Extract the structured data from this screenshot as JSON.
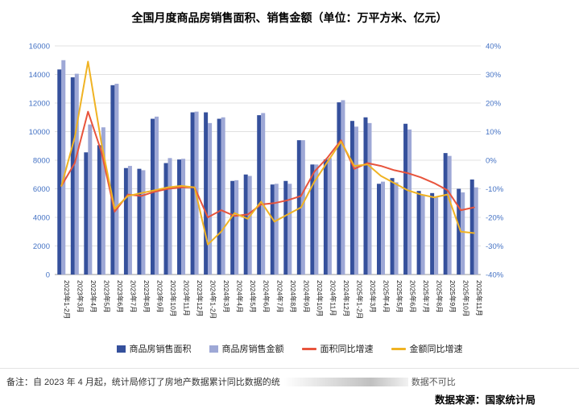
{
  "title": "全国月度商品房销售面积、销售金额（单位：万平方米、亿元）",
  "chart_data": {
    "type": "bar+line",
    "categories": [
      "2023年1-2月",
      "2023年3月",
      "2023年4月",
      "2023年5月",
      "2023年6月",
      "2023年7月",
      "2023年8月",
      "2023年9月",
      "2023年10月",
      "2023年11月",
      "2023年12月",
      "2024年1-2月",
      "2024年3月",
      "2024年4月",
      "2024年5月",
      "2024年6月",
      "2024年7月",
      "2024年8月",
      "2024年9月",
      "2024年10月",
      "2024年11月",
      "2024年12月",
      "2025年1-2月",
      "2025年3月",
      "2025年4月",
      "2025年5月",
      "2025年6月",
      "2025年7月",
      "2025年8月",
      "2025年9月",
      "2025年10月",
      "2025年11月"
    ],
    "series": [
      {
        "key": "sales-area-bar",
        "name": "商品房销售面积",
        "type": "bar",
        "axis": "left",
        "color": "#35509c",
        "values": [
          14350,
          13800,
          8550,
          9050,
          13250,
          7450,
          7400,
          10900,
          7800,
          8050,
          11350,
          11350,
          10900,
          6550,
          7000,
          11150,
          6300,
          6550,
          9400,
          7700,
          8050,
          12050,
          10750,
          11000,
          6350,
          6750,
          10550,
          5850,
          5700,
          8500,
          6000,
          6650
        ]
      },
      {
        "key": "sales-amount-bar",
        "name": "商品房销售金额",
        "type": "bar",
        "axis": "left",
        "color": "#9ea8d6",
        "values": [
          15000,
          14050,
          10500,
          10300,
          13350,
          7600,
          7300,
          11050,
          8150,
          8100,
          11400,
          10600,
          11000,
          6600,
          6900,
          11300,
          6350,
          6350,
          9400,
          7700,
          8150,
          12200,
          10350,
          10600,
          6500,
          6450,
          10150,
          5600,
          5400,
          8300,
          5750,
          6100
        ]
      },
      {
        "key": "area-growth-line",
        "name": "面积同比增速",
        "type": "line",
        "axis": "right",
        "color": "#e8543c",
        "values": [
          -9,
          -1,
          17,
          3,
          -18,
          -12,
          -12.5,
          -11,
          -10,
          -9.5,
          -9.5,
          -20,
          -17.5,
          -19.5,
          -19,
          -15.5,
          -15,
          -14,
          -12.5,
          -4,
          1,
          7,
          -3,
          -1,
          -2,
          -3.5,
          -4.5,
          -6,
          -8,
          -10.5,
          -17.5,
          -16.5
        ]
      },
      {
        "key": "amount-growth-line",
        "name": "金额同比增速",
        "type": "line",
        "axis": "right",
        "color": "#f0b323",
        "values": [
          -9,
          8,
          34.5,
          6,
          -17,
          -12.5,
          -11.5,
          -10.5,
          -9.5,
          -9,
          -9.5,
          -29.5,
          -25,
          -18.5,
          -20.5,
          -14.5,
          -21.5,
          -19,
          -16.5,
          -7.5,
          -0.5,
          6.5,
          -2,
          -1.5,
          -5.5,
          -8,
          -10.5,
          -12,
          -13,
          -12,
          -25,
          -25.5
        ]
      }
    ],
    "left_axis": {
      "min": 0,
      "max": 16000,
      "step": 2000,
      "ticks": [
        "16000",
        "14000",
        "12000",
        "10000",
        "8000",
        "6000",
        "4000",
        "2000",
        "0"
      ]
    },
    "right_axis": {
      "min": -40,
      "max": 40,
      "step": 10,
      "ticks": [
        "40%",
        "30%",
        "20%",
        "10%",
        "0%",
        "-10%",
        "-20%",
        "-30%",
        "-40%"
      ]
    },
    "grid": true,
    "legend_position": "bottom",
    "axis_label_color": "#4472c4",
    "grid_color": "#e0e0e0",
    "axis_line_color": "#9a9a9a"
  },
  "footer": {
    "note_left": "备注：自 2023 年 4 月起，统计局修订了房地产数据累计同比数据的统",
    "note_right": "数据不可比",
    "source": "数据来源：国家统计局"
  }
}
